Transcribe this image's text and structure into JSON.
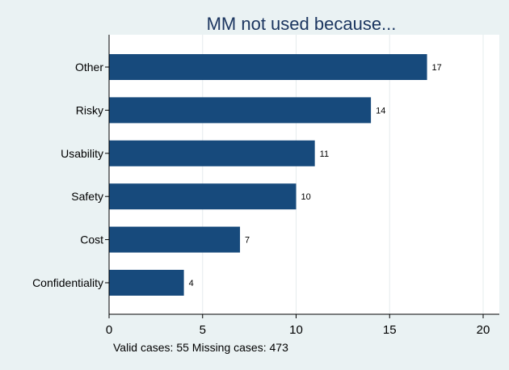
{
  "chart_data": {
    "type": "bar",
    "orientation": "horizontal",
    "title": "MM not used because...",
    "categories": [
      "Other",
      "Risky",
      "Usability",
      "Safety",
      "Cost",
      "Confidentiality"
    ],
    "values": [
      17,
      14,
      11,
      10,
      7,
      4
    ],
    "xlim": [
      0,
      20
    ],
    "xticks": [
      0,
      5,
      10,
      15,
      20
    ],
    "grid": true,
    "note": "Valid cases: 55 Missing cases: 473",
    "colors": {
      "bar": "#174a7c",
      "background": "#eaf2f3",
      "plot_background": "#ffffff",
      "title": "#1c3660"
    }
  }
}
